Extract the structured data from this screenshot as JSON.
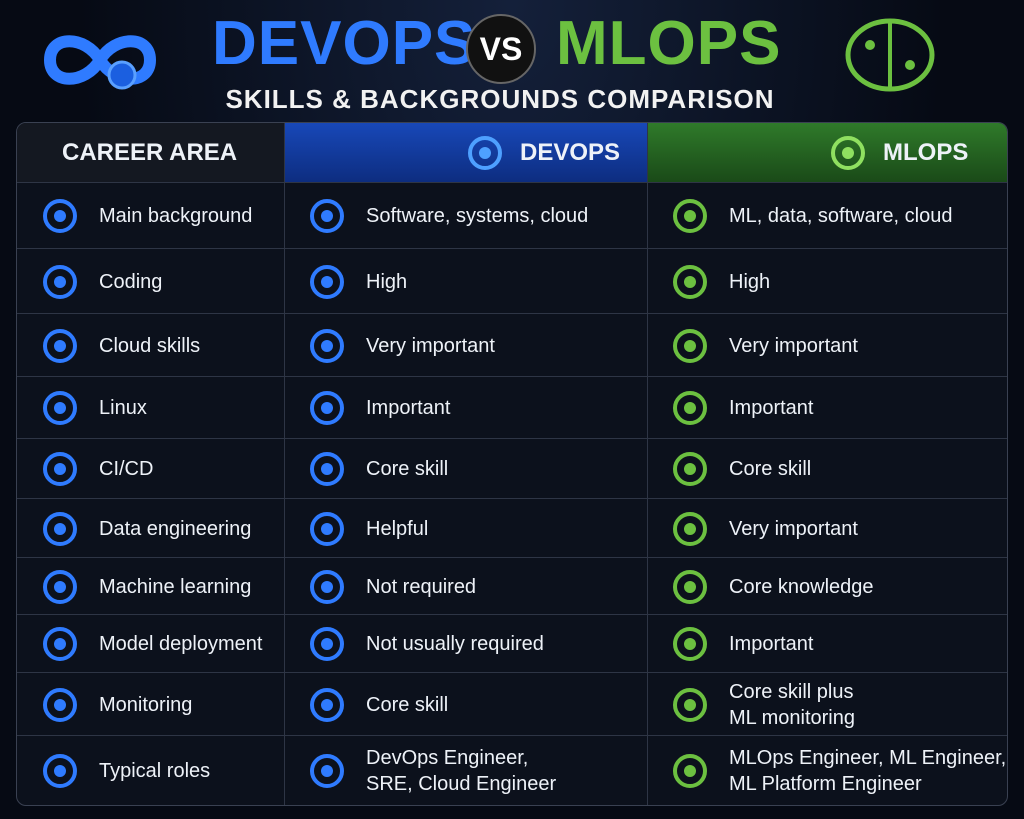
{
  "header": {
    "title_left": "DEVOPS",
    "vs": "VS",
    "title_right": "MLOPS",
    "subtitle": "SKILLS & BACKGROUNDS COMPARISON"
  },
  "table": {
    "headers": [
      "CAREER AREA",
      "DEVOPS",
      "MLOPS"
    ],
    "rows": [
      [
        [
          "Main background"
        ],
        [
          "Software, systems, cloud"
        ],
        [
          "ML, data, software, cloud"
        ]
      ],
      [
        [
          "Coding"
        ],
        [
          "High"
        ],
        [
          "High"
        ]
      ],
      [
        [
          "Cloud skills"
        ],
        [
          "Very important"
        ],
        [
          "Very important"
        ]
      ],
      [
        [
          "Linux"
        ],
        [
          "Important"
        ],
        [
          "Important"
        ]
      ],
      [
        [
          "CI/CD"
        ],
        [
          "Core skill"
        ],
        [
          "Core skill"
        ]
      ],
      [
        [
          "Data engineering"
        ],
        [
          "Helpful"
        ],
        [
          "Very important"
        ]
      ],
      [
        [
          "Machine learning"
        ],
        [
          "Not required"
        ],
        [
          "Core knowledge"
        ]
      ],
      [
        [
          "Model deployment"
        ],
        [
          "Not usually required"
        ],
        [
          "Important"
        ]
      ],
      [
        [
          "Monitoring"
        ],
        [
          "Core skill"
        ],
        [
          "Core skill plus",
          "ML monitoring"
        ]
      ],
      [
        [
          "Typical roles"
        ],
        [
          "DevOps Engineer,",
          "SRE, Cloud Engineer"
        ],
        [
          "MLOps Engineer, ML Engineer,",
          "ML Platform Engineer"
        ]
      ]
    ]
  }
}
